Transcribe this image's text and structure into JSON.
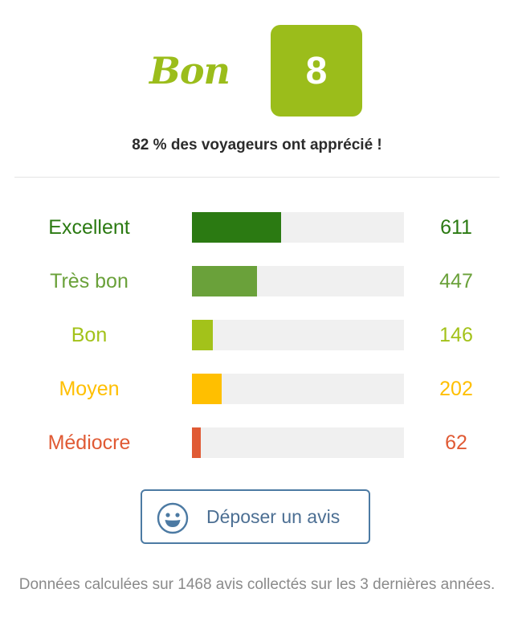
{
  "summary": {
    "grade_label": "Bon",
    "score": "8",
    "approval_text": "82 % des voyageurs ont apprécié !",
    "score_color": "#9bbd1b"
  },
  "breakdown": {
    "max_value": 611,
    "fill_fraction_of_max": 0.42,
    "rows": [
      {
        "label": "Excellent",
        "count": "611",
        "value": 611,
        "color": "#2b7a12"
      },
      {
        "label": "Très bon",
        "count": "447",
        "value": 447,
        "color": "#6aa13a"
      },
      {
        "label": "Bon",
        "count": "146",
        "value": 146,
        "color": "#a3c21a"
      },
      {
        "label": "Moyen",
        "count": "202",
        "value": 202,
        "color": "#ffbf00"
      },
      {
        "label": "Médiocre",
        "count": "62",
        "value": 62,
        "color": "#e05a34"
      }
    ]
  },
  "action": {
    "label": "Déposer un avis",
    "icon": "smile-icon",
    "color": "#4c7aa3"
  },
  "footnote": "Données calculées sur 1468 avis collectés sur les 3 dernières années."
}
